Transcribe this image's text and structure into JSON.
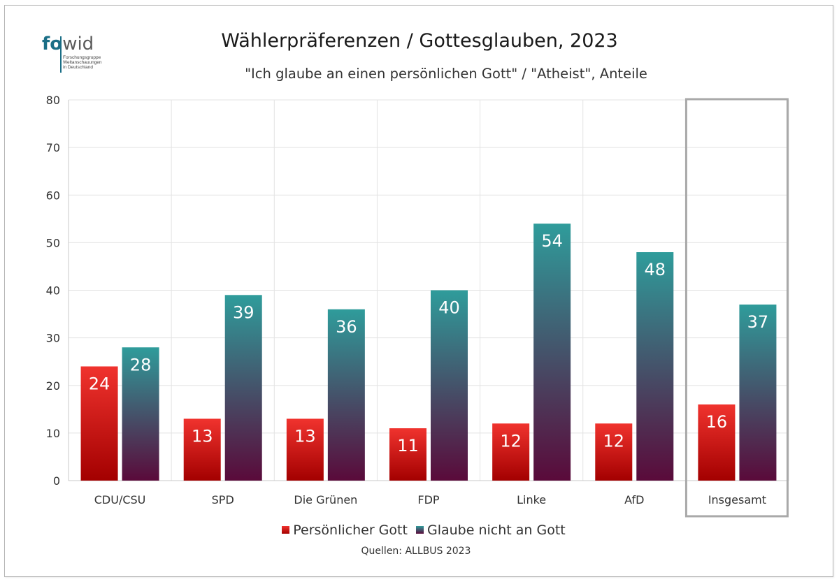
{
  "logo": {
    "mark_left": "fo",
    "mark_right": "wid",
    "lines": [
      "Forschungsgruppe",
      "Weltanschauungen",
      "in Deutschland"
    ]
  },
  "colors": {
    "red_top": "#f0332e",
    "red_bottom": "#a30000",
    "teal_top": "#2f9c9b",
    "teal_bottom": "#5a0a3a",
    "highlight_box": "#a9a9a9"
  },
  "chart_data": {
    "type": "bar",
    "title": "Wählerpräferenzen / Gottesglauben, 2023",
    "subtitle": "\"Ich glaube an einen persönlichen Gott\" / \"Atheist\", Anteile",
    "categories": [
      "CDU/CSU",
      "SPD",
      "Die Grünen",
      "FDP",
      "Linke",
      "AfD",
      "Insgesamt"
    ],
    "series": [
      {
        "name": "Persönlicher Gott",
        "values": [
          24,
          13,
          13,
          11,
          12,
          12,
          16
        ]
      },
      {
        "name": "Glaube nicht an Gott",
        "values": [
          28,
          39,
          36,
          40,
          54,
          48,
          37
        ]
      }
    ],
    "ylim": [
      0,
      80
    ],
    "yticks": [
      0,
      10,
      20,
      30,
      40,
      50,
      60,
      70,
      80
    ],
    "grid": true,
    "legend_position": "bottom",
    "highlighted_category": "Insgesamt"
  },
  "source": "Quellen: ALLBUS  2023"
}
